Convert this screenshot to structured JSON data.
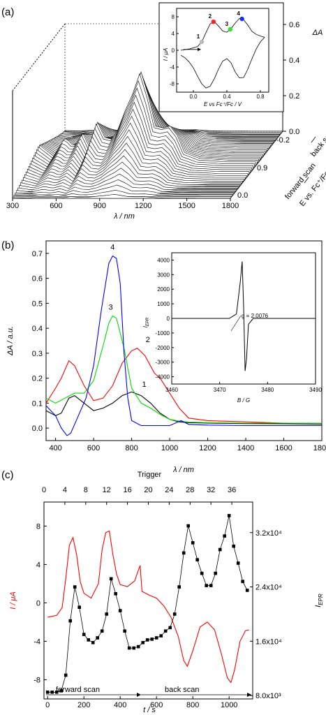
{
  "panel_labels": [
    "(a)",
    "(b)",
    "(c)"
  ],
  "chart_data": [
    {
      "panel": "(a)",
      "type": "line",
      "xlabel": "λ / nm",
      "x_ticks": [
        "300",
        "600",
        "900",
        "1200",
        "1500",
        "1800"
      ],
      "zlabel": "ΔA",
      "z_ticks": [
        "0.0",
        "0.2",
        "0.4",
        "0.6"
      ],
      "depth_label": "E vs. Fc⁺/Fc / V",
      "depth_ticks": [
        "-0.2",
        "0.9",
        "0.0"
      ],
      "depth_annotations": [
        "forward scan",
        "back scan"
      ],
      "x": [
        300,
        400,
        480,
        540,
        600,
        650,
        700,
        750,
        800,
        850,
        900,
        950,
        1000,
        1050,
        1100,
        1150,
        1200,
        1250,
        1300,
        1400,
        1500,
        1600,
        1700,
        1800
      ],
      "peak_profile": [
        0.2,
        0.08,
        0.28,
        0.18,
        0.32,
        0.16,
        0.44,
        0.28,
        0.26,
        0.38,
        0.58,
        0.75,
        0.97,
        0.72,
        0.4,
        0.38,
        0.4,
        0.3,
        0.12,
        0.06,
        0.05,
        0.04,
        0.04,
        0.04
      ],
      "series_count": 40,
      "inset": {
        "type": "line",
        "xlabel": "E vs Fc⁺/Fc / V",
        "ylabel": "I / μA",
        "x_ticks": [
          "0.0",
          "0.4",
          "0.8"
        ],
        "y_ticks": [
          "8",
          "4",
          "0",
          "-4",
          "-8"
        ],
        "xlim": [
          -0.2,
          0.9
        ],
        "ylim": [
          -10,
          10
        ],
        "forward": {
          "x": [
            -0.15,
            -0.05,
            0.05,
            0.1,
            0.15,
            0.2,
            0.25,
            0.3,
            0.35,
            0.4,
            0.45,
            0.5,
            0.55,
            0.6,
            0.65,
            0.7,
            0.75,
            0.8,
            0.85
          ],
          "y": [
            0.0,
            0.3,
            0.9,
            2.0,
            4.2,
            6.3,
            6.8,
            5.8,
            4.6,
            4.3,
            5.2,
            6.5,
            7.6,
            7.3,
            6.0,
            4.5,
            3.8,
            3.4,
            3.1
          ]
        },
        "back": {
          "x": [
            0.85,
            0.8,
            0.75,
            0.7,
            0.65,
            0.6,
            0.55,
            0.5,
            0.45,
            0.4,
            0.35,
            0.3,
            0.25,
            0.2,
            0.15,
            0.1,
            0.05,
            0.0,
            -0.05,
            -0.1,
            -0.15
          ],
          "y": [
            3.1,
            2.0,
            0.3,
            -2.0,
            -4.5,
            -6.5,
            -6.6,
            -5.2,
            -3.0,
            -2.0,
            -2.6,
            -4.5,
            -6.8,
            -8.6,
            -9.0,
            -8.0,
            -6.2,
            -4.2,
            -2.8,
            -1.8,
            -1.2
          ]
        },
        "markers": [
          {
            "label": "1",
            "x": 0.1,
            "y": 2.0,
            "color": "#bbbbbb"
          },
          {
            "label": "2",
            "x": 0.24,
            "y": 6.8,
            "color": "#ff2020"
          },
          {
            "label": "3",
            "x": 0.44,
            "y": 5.0,
            "color": "#30e030"
          },
          {
            "label": "4",
            "x": 0.58,
            "y": 7.5,
            "color": "#1830e0"
          }
        ]
      }
    },
    {
      "panel": "(b)",
      "type": "line",
      "xlabel": "λ / nm",
      "ylabel": "ΔA / a.u.",
      "xlim": [
        350,
        1800
      ],
      "ylim": [
        -0.05,
        0.75
      ],
      "x_ticks": [
        "400",
        "600",
        "800",
        "1000",
        "1200",
        "1400",
        "1600",
        "1800"
      ],
      "y_ticks": [
        "0.0",
        "0.1",
        "0.2",
        "0.3",
        "0.4",
        "0.5",
        "0.6",
        "0.7"
      ],
      "series": [
        {
          "name": "1",
          "color": "#000000",
          "x": [
            350,
            400,
            430,
            470,
            500,
            550,
            600,
            650,
            700,
            750,
            800,
            850,
            900,
            950,
            1000,
            1050,
            1100,
            1200,
            1400,
            1600,
            1800
          ],
          "y": [
            0.07,
            0.05,
            0.06,
            0.12,
            0.13,
            0.1,
            0.07,
            0.08,
            0.1,
            0.13,
            0.145,
            0.13,
            0.1,
            0.06,
            0.035,
            0.025,
            0.022,
            0.02,
            0.018,
            0.017,
            0.016
          ]
        },
        {
          "name": "2",
          "color": "#ff0000",
          "x": [
            350,
            400,
            430,
            470,
            500,
            550,
            600,
            650,
            700,
            750,
            800,
            830,
            870,
            920,
            950,
            1000,
            1050,
            1100,
            1200,
            1400,
            1600,
            1800
          ],
          "y": [
            0.1,
            0.16,
            0.2,
            0.27,
            0.25,
            0.17,
            0.11,
            0.12,
            0.17,
            0.26,
            0.31,
            0.32,
            0.29,
            0.22,
            0.2,
            0.14,
            0.08,
            0.04,
            0.03,
            0.025,
            0.02,
            0.02
          ]
        },
        {
          "name": "3",
          "color": "#00dd00",
          "x": [
            350,
            400,
            450,
            500,
            550,
            600,
            650,
            680,
            700,
            720,
            760,
            800,
            850,
            900,
            950,
            1000,
            1050,
            1100,
            1200,
            1400,
            1600,
            1800
          ],
          "y": [
            0.12,
            0.1,
            0.12,
            0.14,
            0.14,
            0.19,
            0.33,
            0.42,
            0.45,
            0.44,
            0.32,
            0.16,
            0.1,
            0.08,
            0.055,
            0.035,
            0.028,
            0.024,
            0.022,
            0.02,
            0.02,
            0.02
          ]
        },
        {
          "name": "4",
          "color": "#0000ff",
          "x": [
            350,
            400,
            430,
            460,
            480,
            520,
            560,
            600,
            640,
            680,
            700,
            720,
            740,
            760,
            780,
            800,
            850,
            900,
            1000,
            1060,
            1100,
            1200,
            1400,
            1600,
            1800
          ],
          "y": [
            0.09,
            0.05,
            0.0,
            -0.03,
            -0.02,
            0.05,
            0.12,
            0.25,
            0.47,
            0.66,
            0.69,
            0.68,
            0.58,
            0.3,
            0.12,
            0.03,
            0.01,
            0.01,
            0.01,
            0.03,
            0.015,
            0.012,
            0.01,
            0.01,
            0.01
          ]
        }
      ],
      "inset": {
        "type": "line",
        "xlabel": "B / G",
        "ylabel": "I_EPR",
        "ylabel_main": "I",
        "ylabel_sub": "EPR",
        "xlim": [
          3460,
          3490
        ],
        "ylim": [
          -4500,
          4500
        ],
        "x_ticks": [
          "3460",
          "3470",
          "3480",
          "3490"
        ],
        "y_ticks": [
          "4000",
          "3000",
          "2000",
          "1000",
          "0",
          "-1000",
          "-2000",
          "-3000",
          "-4000"
        ],
        "annotation": "g = 2.0076",
        "x": [
          3460,
          3472,
          3473.5,
          3474.3,
          3474.7,
          3475,
          3475.3,
          3475.6,
          3476,
          3477,
          3480,
          3490
        ],
        "y": [
          0,
          0,
          300,
          2500,
          3900,
          800,
          -3600,
          -2800,
          -400,
          0,
          0,
          0
        ]
      }
    },
    {
      "panel": "(c)",
      "type": "line",
      "xlabel": "t / s",
      "top_xlabel": "Trigger",
      "ylabel": "I / μA",
      "y2label": "I_EPR",
      "y2label_main": "I",
      "y2label_sub": "EPR",
      "xlim": [
        -20,
        1130
      ],
      "ylim": [
        -10,
        10.5
      ],
      "y2lim": [
        7500,
        36500
      ],
      "x_ticks": [
        "0",
        "200",
        "400",
        "600",
        "800",
        "1000"
      ],
      "top_ticks": [
        "0",
        "4",
        "8",
        "12",
        "16",
        "20",
        "24",
        "28",
        "32",
        "36"
      ],
      "y_ticks": [
        "8",
        "4",
        "0",
        "-4",
        "-8"
      ],
      "y2_ticks": [
        "3.2x10⁴",
        "2.4x10⁴",
        "1.6x10⁴",
        "8.0x10³"
      ],
      "annotations": [
        "forward scan",
        "back scan"
      ],
      "series": [
        {
          "name": "I / μA",
          "color": "#ff0000",
          "axis": "left",
          "x": [
            0,
            50,
            80,
            100,
            120,
            140,
            160,
            180,
            200,
            240,
            280,
            300,
            320,
            340,
            360,
            380,
            400,
            440,
            480,
            500,
            510,
            520,
            560,
            600,
            640,
            680,
            720,
            750,
            770,
            800,
            840,
            880,
            920,
            960,
            990,
            1010,
            1030,
            1060,
            1090,
            1110
          ],
          "y": [
            -1.5,
            -1.3,
            -0.5,
            2.5,
            6.0,
            6.8,
            5.0,
            2.2,
            1.0,
            0.5,
            2.0,
            5.5,
            7.3,
            7.5,
            5.0,
            3.0,
            1.9,
            1.7,
            2.3,
            3.4,
            3.9,
            1.2,
            0.8,
            0.5,
            -0.3,
            -1.5,
            -3.5,
            -6.0,
            -6.6,
            -5.0,
            -2.5,
            -2.0,
            -2.8,
            -5.5,
            -7.8,
            -8.3,
            -7.0,
            -4.0,
            -2.9,
            -2.8
          ]
        },
        {
          "name": "I_EPR",
          "color": "#000000",
          "axis": "right",
          "markers": true,
          "x": [
            0,
            25,
            50,
            75,
            100,
            125,
            150,
            175,
            200,
            225,
            250,
            275,
            300,
            325,
            350,
            375,
            400,
            425,
            450,
            475,
            500,
            525,
            550,
            575,
            600,
            625,
            650,
            675,
            700,
            725,
            750,
            775,
            800,
            825,
            850,
            875,
            900,
            925,
            950,
            975,
            1000,
            1025,
            1050,
            1075,
            1100
          ],
          "y": [
            8500,
            8500,
            8500,
            8700,
            11000,
            19000,
            24000,
            21000,
            17000,
            16200,
            15800,
            16500,
            17500,
            20000,
            25200,
            23000,
            20500,
            17500,
            15000,
            15000,
            15200,
            15800,
            16200,
            16300,
            16500,
            16800,
            17500,
            18000,
            20000,
            24000,
            29000,
            33000,
            30500,
            28000,
            26000,
            24200,
            24200,
            26000,
            29500,
            31500,
            34500,
            30000,
            27500,
            24800,
            23500
          ]
        }
      ]
    }
  ]
}
